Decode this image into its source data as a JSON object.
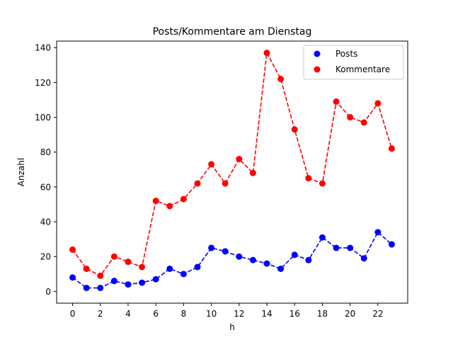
{
  "chart_data": {
    "type": "line",
    "title": "Posts/Kommentare am Dienstag",
    "xlabel": "h",
    "ylabel": "Anzahl",
    "x": [
      0,
      1,
      2,
      3,
      4,
      5,
      6,
      7,
      8,
      9,
      10,
      11,
      12,
      13,
      14,
      15,
      16,
      17,
      18,
      19,
      20,
      21,
      22,
      23
    ],
    "xlim": [
      -1.15,
      24.15
    ],
    "ylim": [
      -6.75,
      143.75
    ],
    "xticks": [
      "0",
      "2",
      "4",
      "6",
      "8",
      "10",
      "12",
      "14",
      "16",
      "18",
      "20",
      "22"
    ],
    "yticks": [
      "0",
      "20",
      "40",
      "60",
      "80",
      "100",
      "120",
      "140"
    ],
    "series": [
      {
        "name": "Posts",
        "color": "#0000ff",
        "style": "dashed line with circle markers",
        "values": [
          8,
          2,
          2,
          6,
          4,
          5,
          7,
          13,
          10,
          14,
          25,
          23,
          20,
          18,
          16,
          13,
          21,
          18,
          31,
          25,
          25,
          19,
          34,
          27
        ]
      },
      {
        "name": "Kommentare",
        "color": "#ff0000",
        "style": "dashed line with circle markers",
        "values": [
          24,
          13,
          9,
          20,
          17,
          14,
          52,
          49,
          53,
          62,
          73,
          62,
          76,
          68,
          137,
          122,
          93,
          65,
          62,
          109,
          100,
          97,
          108,
          82
        ]
      }
    ],
    "grid": false,
    "legend_position": "top-right"
  }
}
